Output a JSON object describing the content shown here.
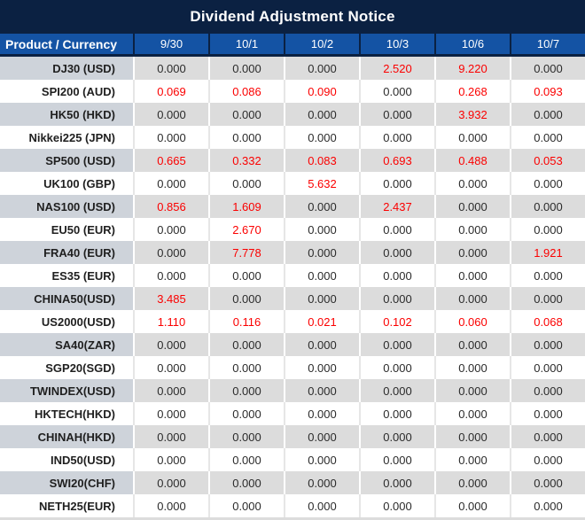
{
  "title": "Dividend Adjustment Notice",
  "colors": {
    "title_bar_bg": "#0b2142",
    "header_bg": "#1453a4",
    "header_text": "#ffffff",
    "row_gray_product_bg": "#ced3da",
    "row_gray_value_bg": "#dcdcdc",
    "row_white_bg": "#ffffff",
    "value_text": "#2b2b2b",
    "nonzero_value_text": "#fb0000",
    "product_text": "#1f1f1f"
  },
  "chart_data": {
    "type": "table",
    "title": "Dividend Adjustment Notice",
    "product_header": "Product / Currency",
    "date_headers": [
      "9/30",
      "10/1",
      "10/2",
      "10/3",
      "10/6",
      "10/7"
    ],
    "rows": [
      {
        "product": "DJ30 (USD)",
        "values": [
          "0.000",
          "0.000",
          "0.000",
          "2.520",
          "9.220",
          "0.000"
        ]
      },
      {
        "product": "SPI200 (AUD)",
        "values": [
          "0.069",
          "0.086",
          "0.090",
          "0.000",
          "0.268",
          "0.093"
        ]
      },
      {
        "product": "HK50 (HKD)",
        "values": [
          "0.000",
          "0.000",
          "0.000",
          "0.000",
          "3.932",
          "0.000"
        ]
      },
      {
        "product": "Nikkei225 (JPN)",
        "values": [
          "0.000",
          "0.000",
          "0.000",
          "0.000",
          "0.000",
          "0.000"
        ]
      },
      {
        "product": "SP500 (USD)",
        "values": [
          "0.665",
          "0.332",
          "0.083",
          "0.693",
          "0.488",
          "0.053"
        ]
      },
      {
        "product": "UK100 (GBP)",
        "values": [
          "0.000",
          "0.000",
          "5.632",
          "0.000",
          "0.000",
          "0.000"
        ]
      },
      {
        "product": "NAS100 (USD)",
        "values": [
          "0.856",
          "1.609",
          "0.000",
          "2.437",
          "0.000",
          "0.000"
        ]
      },
      {
        "product": "EU50 (EUR)",
        "values": [
          "0.000",
          "2.670",
          "0.000",
          "0.000",
          "0.000",
          "0.000"
        ]
      },
      {
        "product": "FRA40 (EUR)",
        "values": [
          "0.000",
          "7.778",
          "0.000",
          "0.000",
          "0.000",
          "1.921"
        ]
      },
      {
        "product": "ES35 (EUR)",
        "values": [
          "0.000",
          "0.000",
          "0.000",
          "0.000",
          "0.000",
          "0.000"
        ]
      },
      {
        "product": "CHINA50(USD)",
        "values": [
          "3.485",
          "0.000",
          "0.000",
          "0.000",
          "0.000",
          "0.000"
        ]
      },
      {
        "product": "US2000(USD)",
        "values": [
          "1.110",
          "0.116",
          "0.021",
          "0.102",
          "0.060",
          "0.068"
        ]
      },
      {
        "product": "SA40(ZAR)",
        "values": [
          "0.000",
          "0.000",
          "0.000",
          "0.000",
          "0.000",
          "0.000"
        ]
      },
      {
        "product": "SGP20(SGD)",
        "values": [
          "0.000",
          "0.000",
          "0.000",
          "0.000",
          "0.000",
          "0.000"
        ]
      },
      {
        "product": "TWINDEX(USD)",
        "values": [
          "0.000",
          "0.000",
          "0.000",
          "0.000",
          "0.000",
          "0.000"
        ]
      },
      {
        "product": "HKTECH(HKD)",
        "values": [
          "0.000",
          "0.000",
          "0.000",
          "0.000",
          "0.000",
          "0.000"
        ]
      },
      {
        "product": "CHINAH(HKD)",
        "values": [
          "0.000",
          "0.000",
          "0.000",
          "0.000",
          "0.000",
          "0.000"
        ]
      },
      {
        "product": "IND50(USD)",
        "values": [
          "0.000",
          "0.000",
          "0.000",
          "0.000",
          "0.000",
          "0.000"
        ]
      },
      {
        "product": "SWI20(CHF)",
        "values": [
          "0.000",
          "0.000",
          "0.000",
          "0.000",
          "0.000",
          "0.000"
        ]
      },
      {
        "product": "NETH25(EUR)",
        "values": [
          "0.000",
          "0.000",
          "0.000",
          "0.000",
          "0.000",
          "0.000"
        ]
      }
    ]
  }
}
